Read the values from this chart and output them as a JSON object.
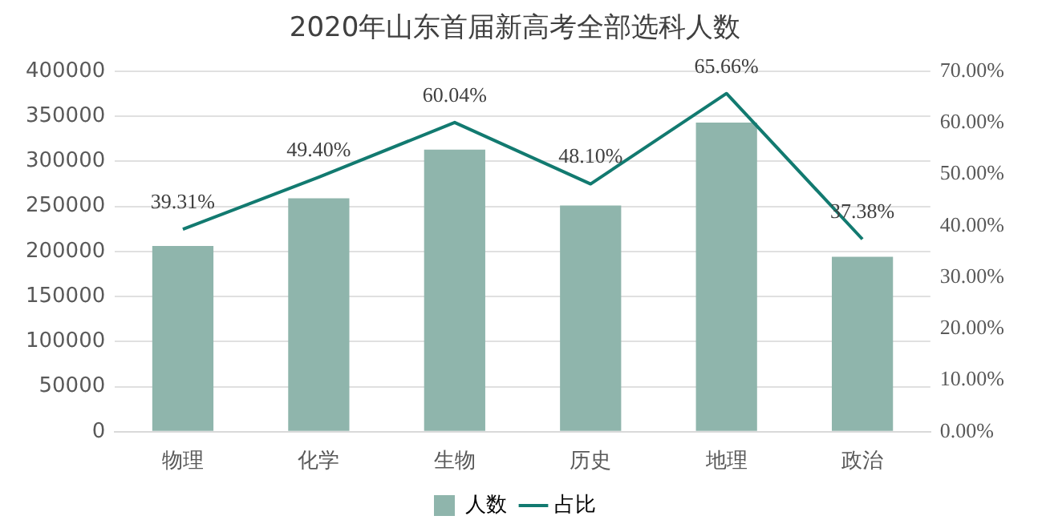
{
  "chart_data": {
    "type": "bar",
    "title": "2020年山东首届新高考全部选科人数",
    "categories": [
      "物理",
      "化学",
      "生物",
      "历史",
      "地理",
      "政治"
    ],
    "series": [
      {
        "name": "人数",
        "color": "#8fb5ac",
        "values": [
          206000,
          259000,
          313000,
          251000,
          343000,
          194000
        ]
      },
      {
        "name": "占比",
        "type": "line",
        "axis": "y2",
        "color": "#127a70",
        "marker": "none",
        "values": [
          39.31,
          49.4,
          60.04,
          48.1,
          65.66,
          37.38
        ],
        "value_labels": [
          "39.31%",
          "49.40%",
          "60.04%",
          "48.10%",
          "65.66%",
          "37.38%"
        ]
      }
    ],
    "ylim": [
      0,
      400000
    ],
    "yticks": [
      0,
      50000,
      100000,
      150000,
      200000,
      250000,
      300000,
      350000,
      400000
    ],
    "y2lim": [
      0,
      70
    ],
    "y2ticks": [
      {
        "value": 0,
        "label": "0.00%"
      },
      {
        "value": 10,
        "label": "10.00%"
      },
      {
        "value": 20,
        "label": "20.00%"
      },
      {
        "value": 30,
        "label": "30.00%"
      },
      {
        "value": 40,
        "label": "40.00%"
      },
      {
        "value": 50,
        "label": "50.00%"
      },
      {
        "value": 60,
        "label": "60.00%"
      },
      {
        "value": 70,
        "label": "70.00%"
      }
    ],
    "grid": "y",
    "legend": "bottom"
  }
}
